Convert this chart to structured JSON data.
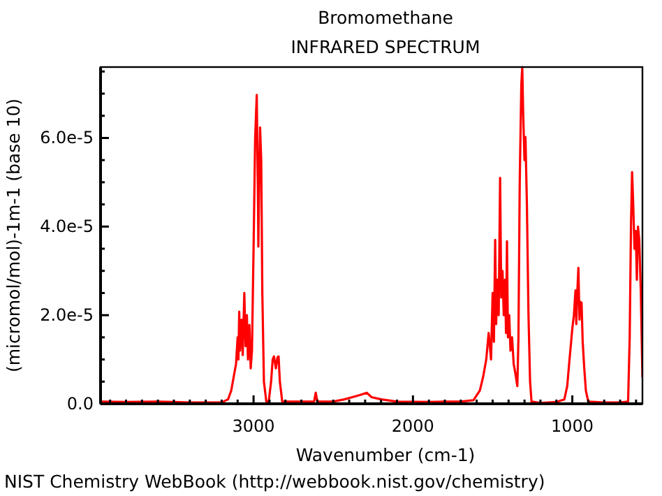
{
  "chart_data": {
    "type": "line",
    "title": "Bromomethane",
    "subtitle": "INFRARED SPECTRUM",
    "xlabel": "Wavenumber (cm-1)",
    "ylabel": "(micromol/mol)-1m-1 (base 10)",
    "annotations": [
      "NIST Chemistry WebBook (http://webbook.nist.gov/chemistry)"
    ],
    "xlim": [
      3960,
      560
    ],
    "ylim": [
      0,
      7.6e-05
    ],
    "xticks": [
      {
        "value": 3900,
        "label": null
      },
      {
        "value": 3800,
        "label": null
      },
      {
        "value": 3700,
        "label": null
      },
      {
        "value": 3600,
        "label": null
      },
      {
        "value": 3500,
        "label": null
      },
      {
        "value": 3400,
        "label": null
      },
      {
        "value": 3300,
        "label": null
      },
      {
        "value": 3200,
        "label": null
      },
      {
        "value": 3100,
        "label": null
      },
      3000,
      {
        "value": 2900,
        "label": null
      },
      {
        "value": 2800,
        "label": null
      },
      {
        "value": 2700,
        "label": null
      },
      {
        "value": 2600,
        "label": null
      },
      {
        "value": 2500,
        "label": null
      },
      {
        "value": 2400,
        "label": null
      },
      {
        "value": 2300,
        "label": null
      },
      {
        "value": 2200,
        "label": null
      },
      {
        "value": 2100,
        "label": null
      },
      2000,
      {
        "value": 1900,
        "label": null
      },
      {
        "value": 1800,
        "label": null
      },
      {
        "value": 1700,
        "label": null
      },
      {
        "value": 1600,
        "label": null
      },
      {
        "value": 1500,
        "label": null
      },
      {
        "value": 1400,
        "label": null
      },
      {
        "value": 1300,
        "label": null
      },
      {
        "value": 1200,
        "label": null
      },
      {
        "value": 1100,
        "label": null
      },
      1000,
      {
        "value": 900,
        "label": null
      },
      {
        "value": 800,
        "label": null
      },
      {
        "value": 700,
        "label": null
      },
      {
        "value": 600,
        "label": null
      }
    ],
    "yticks": [
      {
        "value": 0,
        "label": "0.0"
      },
      {
        "value": 5e-06,
        "label": null
      },
      {
        "value": 1e-05,
        "label": null
      },
      {
        "value": 1.5e-05,
        "label": null
      },
      {
        "value": 2e-05,
        "label": "2.0e-5"
      },
      {
        "value": 2.5e-05,
        "label": null
      },
      {
        "value": 3e-05,
        "label": null
      },
      {
        "value": 3.5e-05,
        "label": null
      },
      {
        "value": 4e-05,
        "label": "4.0e-5"
      },
      {
        "value": 4.5e-05,
        "label": null
      },
      {
        "value": 5e-05,
        "label": null
      },
      {
        "value": 5.5e-05,
        "label": null
      },
      {
        "value": 6e-05,
        "label": "6.0e-5"
      },
      {
        "value": 6.5e-05,
        "label": null
      },
      {
        "value": 7e-05,
        "label": null
      },
      {
        "value": 7.5e-05,
        "label": null
      }
    ],
    "marker": "none",
    "line_style": "solid",
    "series": [
      {
        "color": "#ff0000",
        "x": [
          3960,
          3800,
          3600,
          3400,
          3200,
          3160,
          3140,
          3125,
          3110,
          3100,
          3095,
          3090,
          3085,
          3075,
          3068,
          3058,
          3050,
          3042,
          3035,
          3026,
          3018,
          3010,
          3000,
          2990,
          2980,
          2972,
          2970,
          2965,
          2959,
          2952,
          2945,
          2935,
          2920,
          2905,
          2890,
          2880,
          2872,
          2860,
          2850,
          2843,
          2835,
          2820,
          2700,
          2620,
          2610,
          2600,
          2500,
          2430,
          2380,
          2330,
          2290,
          2260,
          2200,
          2100,
          1900,
          1800,
          1700,
          1620,
          1580,
          1560,
          1540,
          1525,
          1510,
          1500,
          1492,
          1484,
          1478,
          1470,
          1462,
          1453,
          1446,
          1438,
          1430,
          1422,
          1416,
          1410,
          1404,
          1396,
          1388,
          1378,
          1368,
          1358,
          1345,
          1338,
          1330,
          1320,
          1314,
          1308,
          1300,
          1294,
          1285,
          1275,
          1265,
          1256,
          1200,
          1100,
          1050,
          1032,
          1020,
          1010,
          1000,
          990,
          980,
          975,
          970,
          962,
          955,
          950,
          942,
          935,
          925,
          915,
          900,
          800,
          700,
          650,
          640,
          632,
          625,
          618,
          610,
          602,
          595,
          588,
          580,
          570,
          560
        ],
        "values": [
          5e-07,
          4e-07,
          5e-07,
          3e-07,
          3e-07,
          1e-06,
          3e-06,
          6e-06,
          9e-06,
          1.5e-05,
          1e-05,
          2.08e-05,
          1.2e-05,
          1.9e-05,
          1.1e-05,
          2.5e-05,
          1.3e-05,
          2e-05,
          1e-05,
          1.78e-05,
          8e-06,
          1.2e-05,
          3.5e-05,
          6e-05,
          6.97e-05,
          4.5e-05,
          3.55e-05,
          5e-05,
          6.24e-05,
          5.5e-05,
          2.5e-05,
          5e-06,
          5e-07,
          5e-07,
          5e-06,
          1e-05,
          1.07e-05,
          8e-06,
          1.05e-05,
          1.07e-05,
          5e-06,
          5e-07,
          5e-07,
          5e-07,
          2.5e-06,
          5e-07,
          5e-07,
          1e-06,
          1.5e-06,
          2e-06,
          2.5e-06,
          1.5e-06,
          1e-06,
          5e-07,
          4e-07,
          5e-07,
          5e-07,
          8e-07,
          3e-06,
          6e-06,
          1e-05,
          1.6e-05,
          1e-05,
          2.5e-05,
          1.4e-05,
          3.7e-05,
          1.8e-05,
          2.8e-05,
          2e-05,
          5.1e-05,
          2.4e-05,
          3e-05,
          2e-05,
          2.8e-05,
          1.6e-05,
          3.67e-05,
          1.5e-05,
          2e-05,
          1.2e-05,
          1.5e-05,
          9e-06,
          7e-06,
          4e-06,
          1.5e-05,
          5e-05,
          7.2e-05,
          7.6e-05,
          6.5e-05,
          5.5e-05,
          6.02e-05,
          4.5e-05,
          2e-05,
          5e-06,
          5e-07,
          2e-07,
          4e-07,
          1e-06,
          4e-06,
          9e-06,
          1.3e-05,
          1.7e-05,
          2e-05,
          2.56e-05,
          1.8e-05,
          2.4e-05,
          3.07e-05,
          1.9e-05,
          2.3e-05,
          2.28e-05,
          1.4e-05,
          8e-06,
          3e-06,
          5e-07,
          3e-07,
          3e-07,
          5e-07,
          1.5e-05,
          4e-05,
          5.23e-05,
          4.5e-05,
          3.5e-05,
          3.9e-05,
          2.8e-05,
          4e-05,
          3.7e-05,
          2.5e-05,
          6e-06
        ]
      }
    ]
  }
}
